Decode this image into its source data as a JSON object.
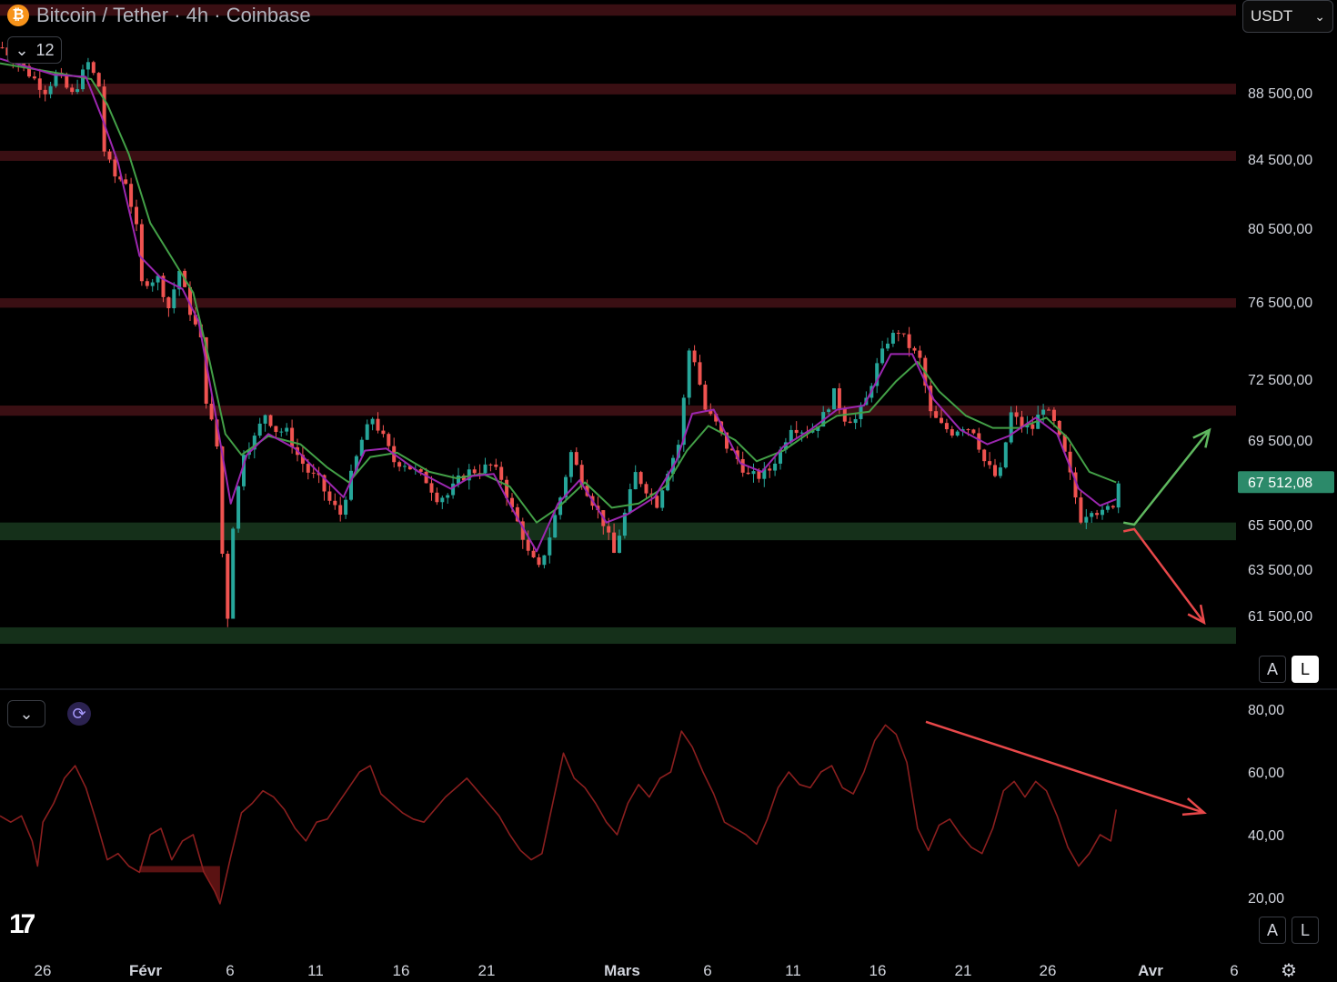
{
  "header": {
    "title": "Bitcoin / Tether · 4h · Coinbase",
    "coin_icon": "bitcoin-icon",
    "indicator_count": "12",
    "currency": "USDT",
    "price_tag": "67 512,08",
    "price_tag_color": "#2c8a6a"
  },
  "buttons": {
    "auto_label": "A",
    "log_label": "L",
    "rsi_auto_label": "A",
    "rsi_log_label": "L"
  },
  "logo": "17",
  "colors": {
    "up": "#26a69a",
    "down": "#ef5350",
    "ma_fast": "#9c27b0",
    "ma_slow": "#43a047",
    "resistance_zone": "#3a0f13",
    "support_zone": "#15301a",
    "rsi_line": "#8b1f1f",
    "arrow_up": "#5fb85f",
    "arrow_down": "#e8484a"
  },
  "chart_data": [
    {
      "type": "candlestick",
      "title": "Bitcoin / Tether · 4h · Coinbase",
      "y_ticks": [
        "88 500,00",
        "84 500,00",
        "80 500,00",
        "76 500,00",
        "72 500,00",
        "69 500,00",
        "65 500,00",
        "63 500,00",
        "61 500,00"
      ],
      "x_ticks": [
        "26",
        "Févr",
        "6",
        "11",
        "16",
        "21",
        "Mars",
        "6",
        "11",
        "16",
        "21",
        "26",
        "Avr",
        "6"
      ],
      "last_price": "67 512,08",
      "price_path": [
        [
          0,
          90500
        ],
        [
          4,
          89600
        ],
        [
          8,
          88600
        ],
        [
          10,
          89300
        ],
        [
          13,
          88400
        ],
        [
          16,
          89800
        ],
        [
          18,
          88800
        ],
        [
          19,
          85000
        ],
        [
          21,
          83500
        ],
        [
          23,
          83200
        ],
        [
          25,
          80500
        ],
        [
          26,
          77500
        ],
        [
          29,
          77800
        ],
        [
          31,
          76200
        ],
        [
          33,
          78200
        ],
        [
          35,
          76000
        ],
        [
          37,
          74500
        ],
        [
          38,
          71500
        ],
        [
          40,
          69200
        ],
        [
          41,
          64200
        ],
        [
          42,
          61500
        ],
        [
          43,
          65500
        ],
        [
          45,
          69000
        ],
        [
          47,
          69600
        ],
        [
          49,
          70800
        ],
        [
          51,
          70000
        ],
        [
          53,
          69900
        ],
        [
          55,
          68800
        ],
        [
          57,
          68000
        ],
        [
          59,
          67600
        ],
        [
          61,
          66600
        ],
        [
          63,
          66000
        ],
        [
          65,
          67800
        ],
        [
          67,
          69500
        ],
        [
          69,
          70600
        ],
        [
          71,
          69600
        ],
        [
          73,
          68500
        ],
        [
          75,
          68400
        ],
        [
          77,
          68000
        ],
        [
          79,
          67600
        ],
        [
          81,
          66800
        ],
        [
          83,
          66900
        ],
        [
          85,
          67600
        ],
        [
          87,
          68000
        ],
        [
          89,
          68100
        ],
        [
          91,
          68300
        ],
        [
          93,
          67700
        ],
        [
          95,
          66200
        ],
        [
          97,
          65000
        ],
        [
          98,
          64200
        ],
        [
          100,
          63500
        ],
        [
          102,
          65000
        ],
        [
          104,
          66800
        ],
        [
          106,
          68900
        ],
        [
          108,
          67600
        ],
        [
          110,
          66600
        ],
        [
          112,
          65600
        ],
        [
          114,
          64200
        ],
        [
          116,
          66000
        ],
        [
          118,
          67900
        ],
        [
          120,
          67200
        ],
        [
          122,
          66500
        ],
        [
          124,
          68100
        ],
        [
          126,
          69300
        ],
        [
          127,
          71500
        ],
        [
          128,
          74000
        ],
        [
          129,
          73500
        ],
        [
          131,
          71000
        ],
        [
          133,
          70300
        ],
        [
          135,
          69200
        ],
        [
          137,
          68600
        ],
        [
          139,
          67800
        ],
        [
          141,
          67800
        ],
        [
          143,
          68100
        ],
        [
          145,
          69000
        ],
        [
          147,
          70200
        ],
        [
          149,
          70000
        ],
        [
          151,
          70000
        ],
        [
          153,
          70700
        ],
        [
          155,
          71800
        ],
        [
          157,
          70600
        ],
        [
          159,
          70500
        ],
        [
          161,
          71500
        ],
        [
          163,
          73200
        ],
        [
          165,
          74500
        ],
        [
          167,
          75000
        ],
        [
          169,
          74200
        ],
        [
          171,
          73500
        ],
        [
          173,
          70800
        ],
        [
          175,
          70200
        ],
        [
          177,
          69900
        ],
        [
          179,
          70200
        ],
        [
          181,
          70000
        ],
        [
          183,
          68500
        ],
        [
          185,
          67800
        ],
        [
          186,
          68000
        ],
        [
          188,
          70800
        ],
        [
          190,
          70200
        ],
        [
          192,
          70100
        ],
        [
          194,
          71200
        ],
        [
          196,
          70300
        ],
        [
          198,
          68800
        ],
        [
          200,
          66800
        ],
        [
          201,
          65800
        ],
        [
          203,
          66300
        ],
        [
          205,
          66000
        ],
        [
          207,
          66500
        ],
        [
          208,
          67500
        ]
      ],
      "ma_fast": [
        [
          0,
          90000
        ],
        [
          10,
          89300
        ],
        [
          16,
          89200
        ],
        [
          19,
          87000
        ],
        [
          22,
          84300
        ],
        [
          26,
          79000
        ],
        [
          30,
          77800
        ],
        [
          34,
          77200
        ],
        [
          37,
          75500
        ],
        [
          40,
          71000
        ],
        [
          43,
          66500
        ],
        [
          46,
          68800
        ],
        [
          50,
          69800
        ],
        [
          55,
          69100
        ],
        [
          60,
          67800
        ],
        [
          64,
          66800
        ],
        [
          68,
          69000
        ],
        [
          72,
          69100
        ],
        [
          78,
          68000
        ],
        [
          84,
          67200
        ],
        [
          88,
          67800
        ],
        [
          92,
          67900
        ],
        [
          96,
          66000
        ],
        [
          100,
          64300
        ],
        [
          104,
          66500
        ],
        [
          108,
          67600
        ],
        [
          113,
          65600
        ],
        [
          117,
          66000
        ],
        [
          122,
          66800
        ],
        [
          126,
          68500
        ],
        [
          129,
          70800
        ],
        [
          133,
          71000
        ],
        [
          138,
          68400
        ],
        [
          142,
          68000
        ],
        [
          146,
          69200
        ],
        [
          151,
          70000
        ],
        [
          156,
          71000
        ],
        [
          161,
          71200
        ],
        [
          166,
          73800
        ],
        [
          170,
          73800
        ],
        [
          174,
          71500
        ],
        [
          179,
          70000
        ],
        [
          184,
          69300
        ],
        [
          188,
          69700
        ],
        [
          193,
          70600
        ],
        [
          197,
          69800
        ],
        [
          201,
          67200
        ],
        [
          205,
          66400
        ],
        [
          208,
          66700
        ]
      ],
      "ma_slow": [
        [
          0,
          89800
        ],
        [
          10,
          89400
        ],
        [
          17,
          89100
        ],
        [
          20,
          87800
        ],
        [
          24,
          84800
        ],
        [
          28,
          80800
        ],
        [
          32,
          78900
        ],
        [
          36,
          77000
        ],
        [
          39,
          73500
        ],
        [
          42,
          69800
        ],
        [
          45,
          68800
        ],
        [
          50,
          69700
        ],
        [
          56,
          69300
        ],
        [
          61,
          68200
        ],
        [
          65,
          67500
        ],
        [
          69,
          68700
        ],
        [
          74,
          68900
        ],
        [
          80,
          68000
        ],
        [
          85,
          67700
        ],
        [
          90,
          67900
        ],
        [
          95,
          67300
        ],
        [
          100,
          65600
        ],
        [
          104,
          66300
        ],
        [
          109,
          67500
        ],
        [
          114,
          66300
        ],
        [
          119,
          66500
        ],
        [
          124,
          67300
        ],
        [
          128,
          69000
        ],
        [
          132,
          70200
        ],
        [
          137,
          69500
        ],
        [
          141,
          68500
        ],
        [
          146,
          69000
        ],
        [
          151,
          69900
        ],
        [
          156,
          70700
        ],
        [
          162,
          70900
        ],
        [
          167,
          72400
        ],
        [
          171,
          73400
        ],
        [
          175,
          71900
        ],
        [
          180,
          70700
        ],
        [
          185,
          70100
        ],
        [
          190,
          70100
        ],
        [
          195,
          70600
        ],
        [
          199,
          69600
        ],
        [
          203,
          68000
        ],
        [
          208,
          67500
        ]
      ],
      "resistance_zones": [
        [
          91900,
          92400
        ],
        [
          88400,
          88900
        ],
        [
          84400,
          85000
        ],
        [
          76200,
          76700
        ],
        [
          70700,
          71200
        ]
      ],
      "support_zones": [
        [
          64800,
          65600
        ],
        [
          60300,
          61000
        ]
      ],
      "projections": [
        {
          "direction": "up",
          "from": [
            208,
            65600
          ],
          "mid": [
            209,
            65500
          ],
          "to": [
            222,
            70000
          ]
        },
        {
          "direction": "down",
          "from": [
            208,
            65200
          ],
          "mid": [
            209,
            65300
          ],
          "to": [
            221,
            61200
          ]
        }
      ]
    },
    {
      "type": "line",
      "title": "",
      "y_ticks": [
        "80,00",
        "60,00",
        "40,00",
        "20,00"
      ],
      "ylim": [
        15,
        85
      ],
      "series": [
        {
          "values": [
            [
              0,
              46
            ],
            [
              2,
              44
            ],
            [
              4,
              46
            ],
            [
              6,
              38
            ],
            [
              7,
              30
            ],
            [
              8,
              44
            ],
            [
              10,
              50
            ],
            [
              12,
              58
            ],
            [
              14,
              62
            ],
            [
              16,
              55
            ],
            [
              18,
              44
            ],
            [
              20,
              32
            ],
            [
              22,
              34
            ],
            [
              24,
              30
            ],
            [
              26,
              28
            ],
            [
              28,
              40
            ],
            [
              30,
              42
            ],
            [
              32,
              32
            ],
            [
              34,
              38
            ],
            [
              36,
              40
            ],
            [
              38,
              28
            ],
            [
              40,
              22
            ],
            [
              41,
              18
            ],
            [
              43,
              33
            ],
            [
              45,
              47
            ],
            [
              47,
              50
            ],
            [
              49,
              54
            ],
            [
              51,
              52
            ],
            [
              53,
              48
            ],
            [
              55,
              42
            ],
            [
              57,
              38
            ],
            [
              59,
              44
            ],
            [
              61,
              45
            ],
            [
              63,
              50
            ],
            [
              65,
              55
            ],
            [
              67,
              60
            ],
            [
              69,
              62
            ],
            [
              71,
              53
            ],
            [
              73,
              50
            ],
            [
              75,
              47
            ],
            [
              77,
              45
            ],
            [
              79,
              44
            ],
            [
              81,
              48
            ],
            [
              83,
              52
            ],
            [
              85,
              55
            ],
            [
              87,
              58
            ],
            [
              89,
              54
            ],
            [
              91,
              50
            ],
            [
              93,
              46
            ],
            [
              95,
              40
            ],
            [
              97,
              35
            ],
            [
              99,
              32
            ],
            [
              101,
              34
            ],
            [
              103,
              50
            ],
            [
              105,
              66
            ],
            [
              107,
              58
            ],
            [
              109,
              55
            ],
            [
              111,
              50
            ],
            [
              113,
              44
            ],
            [
              115,
              40
            ],
            [
              117,
              50
            ],
            [
              119,
              56
            ],
            [
              121,
              52
            ],
            [
              123,
              58
            ],
            [
              125,
              60
            ],
            [
              127,
              73
            ],
            [
              129,
              68
            ],
            [
              131,
              60
            ],
            [
              133,
              53
            ],
            [
              135,
              44
            ],
            [
              137,
              42
            ],
            [
              139,
              40
            ],
            [
              141,
              37
            ],
            [
              143,
              45
            ],
            [
              145,
              55
            ],
            [
              147,
              60
            ],
            [
              149,
              56
            ],
            [
              151,
              55
            ],
            [
              153,
              60
            ],
            [
              155,
              62
            ],
            [
              157,
              55
            ],
            [
              159,
              53
            ],
            [
              161,
              60
            ],
            [
              163,
              70
            ],
            [
              165,
              75
            ],
            [
              167,
              72
            ],
            [
              169,
              63
            ],
            [
              171,
              42
            ],
            [
              173,
              35
            ],
            [
              175,
              43
            ],
            [
              177,
              45
            ],
            [
              179,
              40
            ],
            [
              181,
              36
            ],
            [
              183,
              34
            ],
            [
              185,
              42
            ],
            [
              187,
              54
            ],
            [
              189,
              57
            ],
            [
              191,
              52
            ],
            [
              193,
              57
            ],
            [
              195,
              54
            ],
            [
              197,
              46
            ],
            [
              199,
              36
            ],
            [
              201,
              30
            ],
            [
              203,
              34
            ],
            [
              205,
              40
            ],
            [
              207,
              38
            ],
            [
              208,
              48
            ]
          ]
        }
      ],
      "trend_arrow": {
        "from": [
          170,
          76
        ],
        "to": [
          221,
          47
        ]
      }
    }
  ]
}
